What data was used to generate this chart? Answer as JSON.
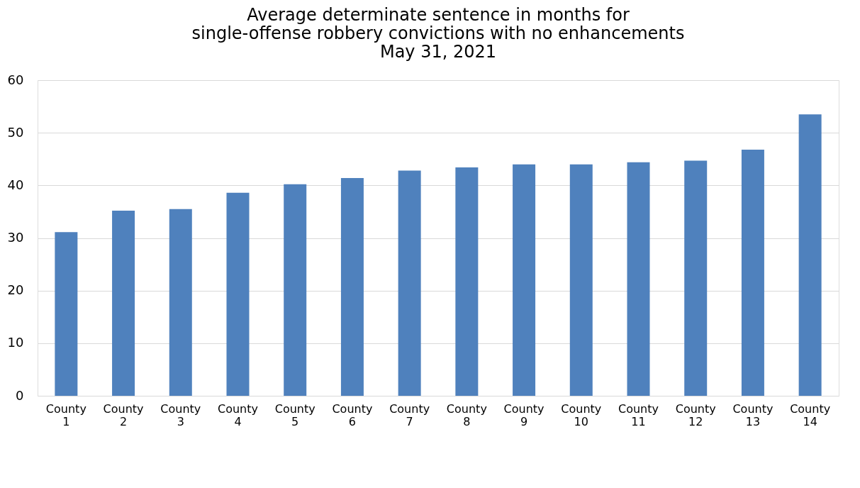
{
  "chart_data": {
    "type": "bar",
    "title": "Average determinate sentence in months for\nsingle-offense robbery convictions with no enhancements\nMay 31, 2021",
    "categories": [
      "County 1",
      "County 2",
      "County 3",
      "County 4",
      "County 5",
      "County 6",
      "County 7",
      "County 8",
      "County 9",
      "County 10",
      "County 11",
      "County 12",
      "County 13",
      "County 14"
    ],
    "values": [
      31.1,
      35.2,
      35.5,
      38.6,
      40.2,
      41.4,
      42.8,
      43.4,
      44.0,
      44.0,
      44.4,
      44.7,
      46.8,
      53.5
    ],
    "color": "#4f81bd",
    "ylim": [
      0,
      60
    ],
    "yticks": [
      0,
      10,
      20,
      30,
      40,
      50,
      60
    ],
    "grid": "y"
  }
}
